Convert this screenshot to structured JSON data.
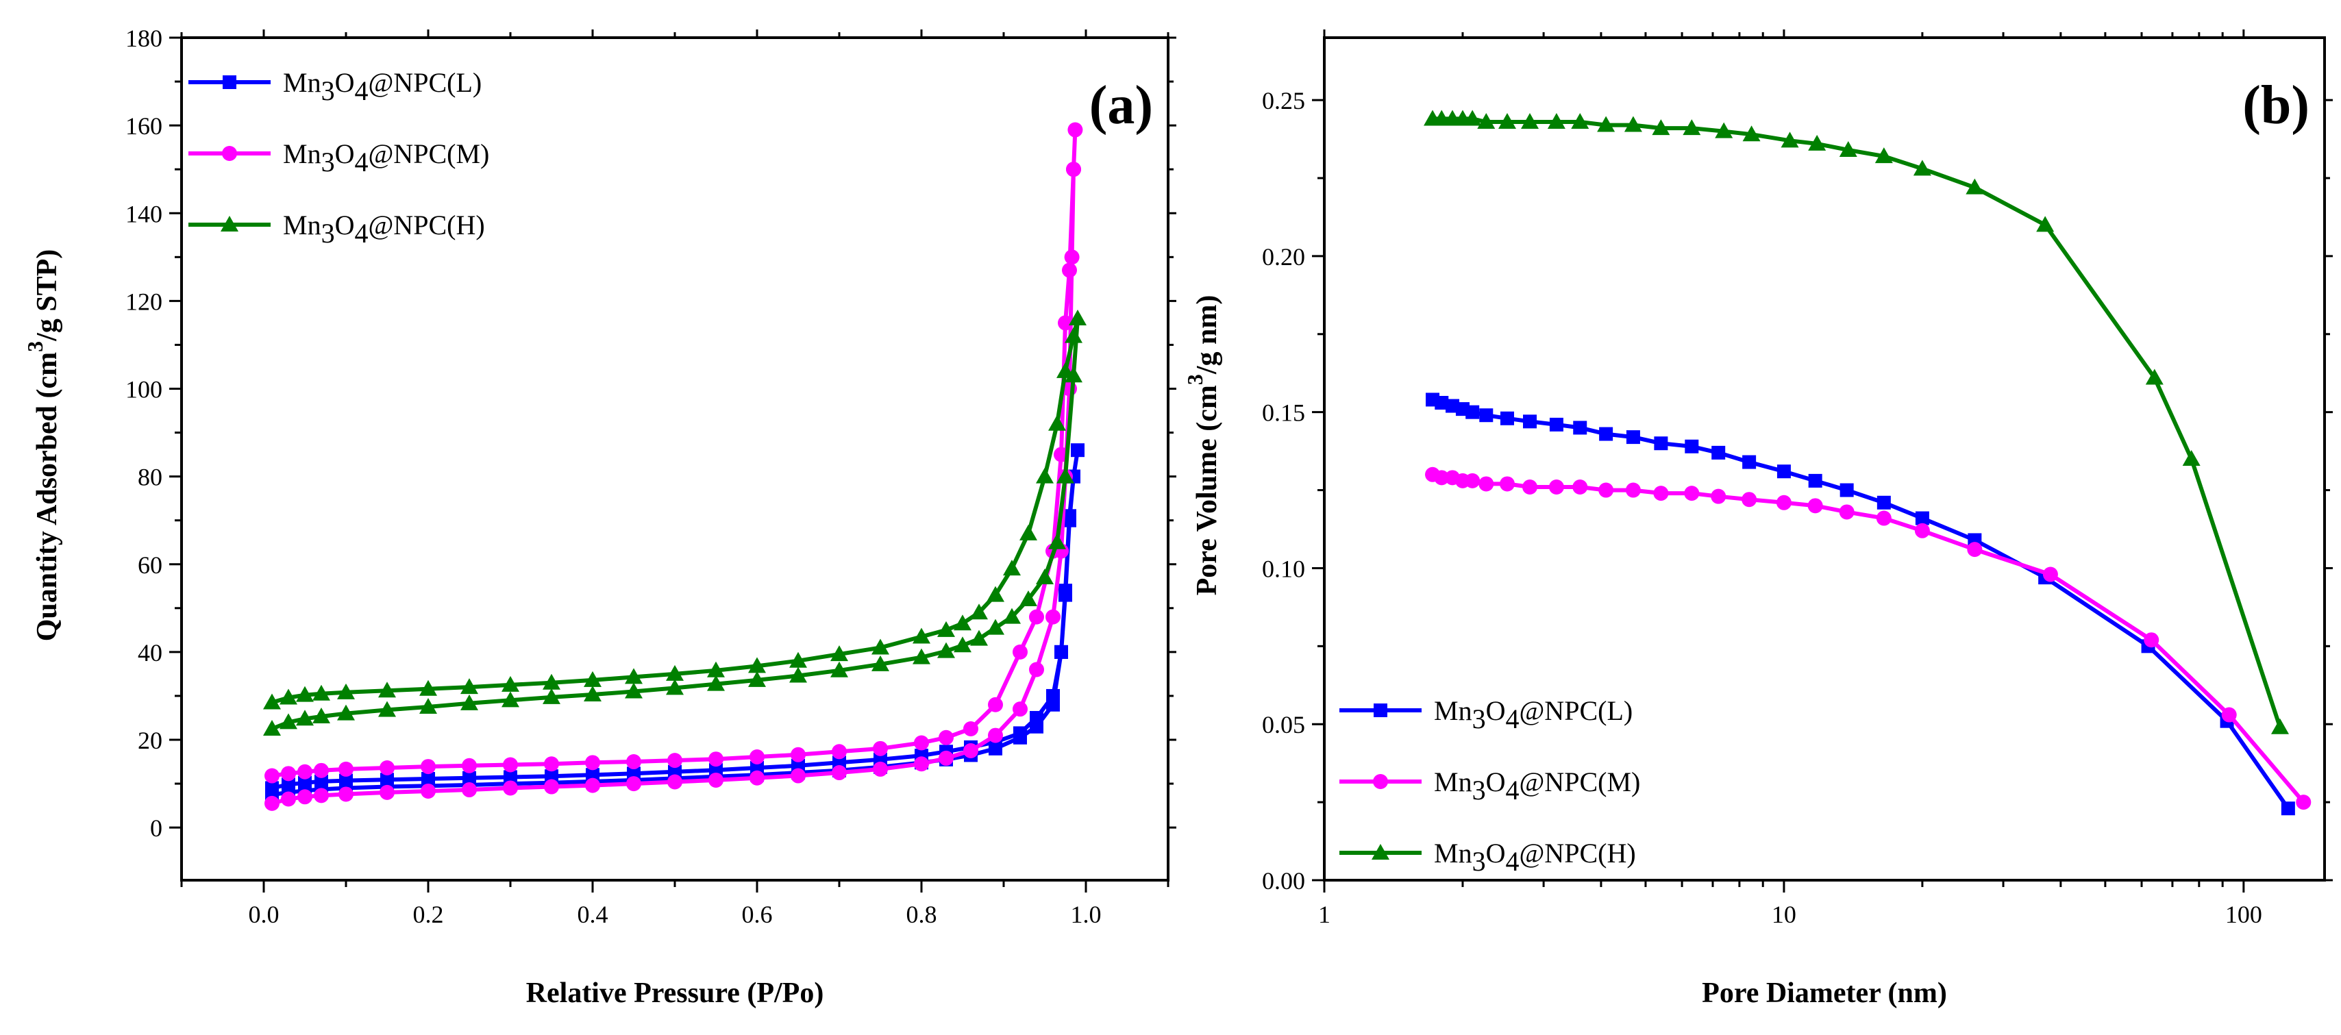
{
  "chart_data": [
    {
      "type": "line",
      "panel_label": "(a)",
      "xlabel": "Relative Pressure (P/Po)",
      "ylabel": "Quantity Adsorbed (cm³/g STP)",
      "ylabel_parts": [
        "Quantity Adsorbed (cm",
        "3",
        "/g STP)"
      ],
      "xlim": [
        -0.1,
        1.1
      ],
      "ylim": [
        -12,
        180
      ],
      "xticks": [
        0.0,
        0.2,
        0.4,
        0.6,
        0.8,
        1.0
      ],
      "xtick_labels": [
        "0.0",
        "0.2",
        "0.4",
        "0.6",
        "0.8",
        "1.0"
      ],
      "yticks": [
        0,
        20,
        40,
        60,
        80,
        100,
        120,
        140,
        160,
        180
      ],
      "ytick_labels": [
        "0",
        "20",
        "40",
        "60",
        "80",
        "100",
        "120",
        "140",
        "160",
        "180"
      ],
      "legend_position": "top-left",
      "series": [
        {
          "name": "Mn3O4@NPC(L)",
          "legend_main": "Mn",
          "legend_sub1": "3",
          "legend_mid": "O",
          "legend_sub2": "4",
          "legend_tail": "@NPC(L)",
          "color": "#0000ff",
          "marker": "square",
          "x": [
            0.01,
            0.03,
            0.05,
            0.07,
            0.1,
            0.15,
            0.2,
            0.25,
            0.3,
            0.35,
            0.4,
            0.45,
            0.5,
            0.55,
            0.6,
            0.65,
            0.7,
            0.75,
            0.8,
            0.83,
            0.86,
            0.89,
            0.92,
            0.94,
            0.96,
            0.97,
            0.975,
            0.98,
            0.985,
            0.99,
            0.985,
            0.98,
            0.975,
            0.97,
            0.96,
            0.94,
            0.92,
            0.89,
            0.86,
            0.83,
            0.8,
            0.75,
            0.7,
            0.65,
            0.6,
            0.55,
            0.5,
            0.45,
            0.4,
            0.35,
            0.3,
            0.25,
            0.2,
            0.15,
            0.1,
            0.07,
            0.05,
            0.03,
            0.01
          ],
          "y": [
            7.5,
            8.0,
            8.4,
            8.7,
            9.0,
            9.3,
            9.5,
            9.7,
            10.0,
            10.2,
            10.5,
            10.8,
            11.2,
            11.6,
            12.0,
            12.5,
            13.0,
            13.8,
            14.8,
            15.5,
            16.5,
            18.0,
            20.5,
            23.0,
            28.0,
            40.0,
            54.0,
            71.0,
            80.0,
            86.0,
            80.0,
            70.0,
            53.0,
            40.0,
            30.0,
            25.0,
            21.5,
            19.5,
            18.3,
            17.3,
            16.4,
            15.5,
            14.8,
            14.1,
            13.6,
            13.1,
            12.7,
            12.3,
            12.0,
            11.7,
            11.5,
            11.3,
            11.1,
            10.9,
            10.7,
            10.5,
            10.2,
            9.8,
            9.0
          ]
        },
        {
          "name": "Mn3O4@NPC(M)",
          "legend_main": "Mn",
          "legend_sub1": "3",
          "legend_mid": "O",
          "legend_sub2": "4",
          "legend_tail": "@NPC(M)",
          "color": "#ff00ff",
          "marker": "circle",
          "x": [
            0.01,
            0.03,
            0.05,
            0.07,
            0.1,
            0.15,
            0.2,
            0.25,
            0.3,
            0.35,
            0.4,
            0.45,
            0.5,
            0.55,
            0.6,
            0.65,
            0.7,
            0.75,
            0.8,
            0.83,
            0.86,
            0.89,
            0.92,
            0.94,
            0.96,
            0.97,
            0.975,
            0.98,
            0.983,
            0.985,
            0.987,
            0.985,
            0.98,
            0.975,
            0.97,
            0.96,
            0.94,
            0.92,
            0.89,
            0.86,
            0.83,
            0.8,
            0.75,
            0.7,
            0.65,
            0.6,
            0.55,
            0.5,
            0.45,
            0.4,
            0.35,
            0.3,
            0.25,
            0.2,
            0.15,
            0.1,
            0.07,
            0.05,
            0.03,
            0.01
          ],
          "y": [
            5.5,
            6.5,
            7.0,
            7.3,
            7.6,
            8.0,
            8.3,
            8.6,
            9.0,
            9.3,
            9.6,
            10.0,
            10.4,
            10.8,
            11.3,
            11.8,
            12.5,
            13.3,
            14.5,
            15.8,
            17.5,
            21.0,
            27.0,
            36.0,
            48.0,
            63.0,
            80.0,
            100.0,
            130.0,
            150.0,
            159.0,
            150.0,
            127.0,
            115.0,
            85.0,
            63.0,
            48.0,
            40.0,
            28.0,
            22.5,
            20.5,
            19.3,
            18.0,
            17.3,
            16.6,
            16.1,
            15.6,
            15.3,
            15.0,
            14.8,
            14.5,
            14.3,
            14.1,
            13.9,
            13.6,
            13.3,
            13.0,
            12.7,
            12.3,
            11.8
          ]
        },
        {
          "name": "Mn3O4@NPC(H)",
          "legend_main": "Mn",
          "legend_sub1": "3",
          "legend_mid": "O",
          "legend_sub2": "4",
          "legend_tail": "@NPC(H)",
          "color": "#008000",
          "marker": "triangle",
          "x": [
            0.01,
            0.03,
            0.05,
            0.07,
            0.1,
            0.15,
            0.2,
            0.25,
            0.3,
            0.35,
            0.4,
            0.45,
            0.5,
            0.55,
            0.6,
            0.65,
            0.7,
            0.75,
            0.8,
            0.83,
            0.85,
            0.87,
            0.89,
            0.91,
            0.93,
            0.95,
            0.965,
            0.975,
            0.985,
            0.99,
            0.985,
            0.975,
            0.965,
            0.95,
            0.93,
            0.91,
            0.89,
            0.87,
            0.85,
            0.83,
            0.8,
            0.75,
            0.7,
            0.65,
            0.6,
            0.55,
            0.5,
            0.45,
            0.4,
            0.35,
            0.3,
            0.25,
            0.2,
            0.15,
            0.1,
            0.07,
            0.05,
            0.03,
            0.01
          ],
          "y": [
            22.5,
            24.0,
            24.8,
            25.3,
            26.0,
            26.8,
            27.5,
            28.3,
            29.0,
            29.7,
            30.3,
            31.0,
            31.8,
            32.7,
            33.6,
            34.6,
            35.8,
            37.2,
            38.8,
            40.2,
            41.5,
            43.0,
            45.5,
            48.0,
            52.0,
            57.0,
            65.0,
            80.0,
            103.0,
            116.0,
            112.0,
            104.0,
            92.0,
            80.0,
            67.0,
            59.0,
            53.0,
            49.0,
            46.5,
            45.0,
            43.5,
            41.0,
            39.5,
            38.0,
            36.8,
            35.8,
            35.0,
            34.3,
            33.6,
            33.0,
            32.5,
            32.0,
            31.6,
            31.2,
            30.8,
            30.5,
            30.2,
            29.6,
            28.5
          ]
        }
      ]
    },
    {
      "type": "line",
      "panel_label": "(b)",
      "xlabel": "Pore Diameter (nm)",
      "ylabel": "Pore Volume (cm³/g nm)",
      "ylabel_parts": [
        "Pore Volume (cm",
        "3",
        "/g nm)"
      ],
      "xscale": "log",
      "xlim": [
        1,
        150
      ],
      "ylim": [
        0.0,
        0.27
      ],
      "xticks": [
        1,
        10,
        100
      ],
      "xtick_labels": [
        "1",
        "10",
        "100"
      ],
      "yticks": [
        0.0,
        0.05,
        0.1,
        0.15,
        0.2,
        0.25
      ],
      "ytick_labels": [
        "0.00",
        "0.05",
        "0.10",
        "0.15",
        "0.20",
        "0.25"
      ],
      "legend_position": "bottom-left",
      "series": [
        {
          "name": "Mn3O4@NPC(L)",
          "legend_main": "Mn",
          "legend_sub1": "3",
          "legend_mid": "O",
          "legend_sub2": "4",
          "legend_tail": "@NPC(L)",
          "color": "#0000ff",
          "marker": "square",
          "x": [
            1.72,
            1.8,
            1.9,
            2.0,
            2.1,
            2.25,
            2.5,
            2.8,
            3.2,
            3.6,
            4.1,
            4.7,
            5.4,
            6.3,
            7.2,
            8.4,
            10.0,
            11.7,
            13.7,
            16.5,
            20.0,
            26.0,
            37.0,
            62.0,
            92.0,
            125.0
          ],
          "y": [
            0.154,
            0.153,
            0.152,
            0.151,
            0.15,
            0.149,
            0.148,
            0.147,
            0.146,
            0.145,
            0.143,
            0.142,
            0.14,
            0.139,
            0.137,
            0.134,
            0.131,
            0.128,
            0.125,
            0.121,
            0.116,
            0.109,
            0.097,
            0.075,
            0.051,
            0.023
          ]
        },
        {
          "name": "Mn3O4@NPC(M)",
          "legend_main": "Mn",
          "legend_sub1": "3",
          "legend_mid": "O",
          "legend_sub2": "4",
          "legend_tail": "@NPC(M)",
          "color": "#ff00ff",
          "marker": "circle",
          "x": [
            1.72,
            1.8,
            1.9,
            2.0,
            2.1,
            2.25,
            2.5,
            2.8,
            3.2,
            3.6,
            4.1,
            4.7,
            5.4,
            6.3,
            7.2,
            8.4,
            10.0,
            11.7,
            13.7,
            16.5,
            20.0,
            26.0,
            38.0,
            63.0,
            93.0,
            135.0
          ],
          "y": [
            0.13,
            0.129,
            0.129,
            0.128,
            0.128,
            0.127,
            0.127,
            0.126,
            0.126,
            0.126,
            0.125,
            0.125,
            0.124,
            0.124,
            0.123,
            0.122,
            0.121,
            0.12,
            0.118,
            0.116,
            0.112,
            0.106,
            0.098,
            0.077,
            0.053,
            0.025
          ]
        },
        {
          "name": "Mn3O4@NPC(H)",
          "legend_main": "Mn",
          "legend_sub1": "3",
          "legend_mid": "O",
          "legend_sub2": "4",
          "legend_tail": "@NPC(H)",
          "color": "#008000",
          "marker": "triangle",
          "x": [
            1.72,
            1.8,
            1.9,
            2.0,
            2.1,
            2.25,
            2.5,
            2.8,
            3.2,
            3.6,
            4.1,
            4.7,
            5.4,
            6.3,
            7.4,
            8.5,
            10.3,
            11.8,
            13.8,
            16.5,
            20.0,
            26.0,
            37.0,
            64.0,
            77.0,
            120.0
          ],
          "y": [
            0.244,
            0.244,
            0.244,
            0.244,
            0.244,
            0.243,
            0.243,
            0.243,
            0.243,
            0.243,
            0.242,
            0.242,
            0.241,
            0.241,
            0.24,
            0.239,
            0.237,
            0.236,
            0.234,
            0.232,
            0.228,
            0.222,
            0.21,
            0.161,
            0.135,
            0.049
          ]
        }
      ]
    }
  ]
}
